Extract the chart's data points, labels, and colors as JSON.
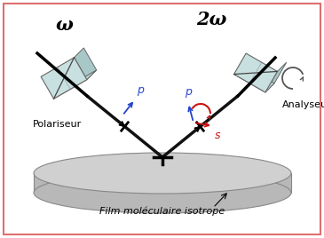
{
  "background_color": "#ffffff",
  "border_color": "#e07070",
  "disk_top_color": "#d0d0d0",
  "disk_side_color": "#b8b8b8",
  "beam_color": "#111111",
  "prism_face_color": "#c8e0e0",
  "prism_edge_color": "#666666",
  "omega_label": "ω",
  "two_omega_label": "2ω",
  "polariseur_label": "Polariseur",
  "analyseur_label": "Analyseur",
  "film_label": "Film moléculaire isotrope",
  "p_color": "#2244cc",
  "s_color": "#cc1111",
  "rot_arrow_color": "#cc1111",
  "analyseur_arrow_color": "#555555",
  "figsize": [
    3.65,
    2.68
  ],
  "dpi": 100
}
